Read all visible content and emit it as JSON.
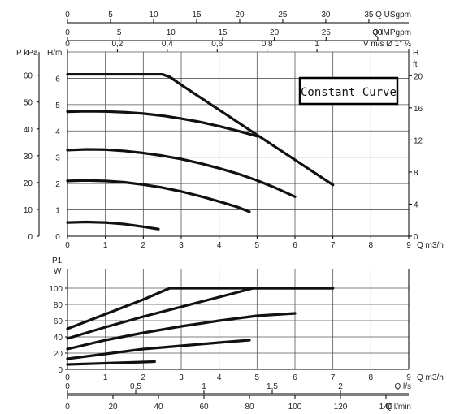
{
  "chart_data": [
    {
      "type": "line",
      "title": "Constant Curve",
      "xlabel": "Q m3/h",
      "ylabel": "H/m",
      "xlim": [
        0,
        9
      ],
      "ylim": [
        0,
        7
      ],
      "x_ticks": [
        "0",
        "1",
        "2",
        "3",
        "4",
        "5",
        "6",
        "7",
        "8",
        "9"
      ],
      "y_ticks": [
        "0",
        "1",
        "2",
        "3",
        "4",
        "5",
        "6"
      ],
      "left_axis_label": "P kPa",
      "left_axis_ticks": [
        "0",
        "10",
        "20",
        "30",
        "40",
        "50",
        "60"
      ],
      "right_axis_label_top": "H",
      "right_axis_label_bottom": "ft",
      "right_axis_ticks": [
        "0",
        "4",
        "8",
        "12",
        "16",
        "20"
      ],
      "top_axis_1_label": "Q USgpm",
      "top_axis_1_ticks": [
        "0",
        "5",
        "10",
        "15",
        "20",
        "25",
        "30",
        "35"
      ],
      "top_axis_2_label": "Q IMPgpm",
      "top_axis_2_ticks": [
        "0",
        "5",
        "10",
        "15",
        "20",
        "25",
        "30"
      ],
      "top_axis_3_label": "V m/s Ø 1\" ½",
      "top_axis_3_ticks": [
        "0",
        "0,2",
        "0,4",
        "0,6",
        "0,8",
        "1"
      ],
      "grid": true,
      "series": [
        {
          "x": [
            0,
            1,
            2,
            2.5,
            2.7,
            2.8
          ],
          "y": [
            6.15,
            6.15,
            6.15,
            6.15,
            6.05,
            5.95
          ]
        },
        {
          "x": [
            0,
            0.5,
            1,
            1.5,
            2,
            2.5,
            3,
            3.5,
            4,
            4.5,
            5
          ],
          "y": [
            4.73,
            4.75,
            4.74,
            4.71,
            4.66,
            4.58,
            4.47,
            4.34,
            4.18,
            4.0,
            3.8
          ]
        },
        {
          "x": [
            0,
            0.5,
            1,
            1.5,
            2,
            2.5,
            3,
            3.5,
            4,
            4.5,
            5,
            5.5,
            6
          ],
          "y": [
            3.27,
            3.3,
            3.29,
            3.24,
            3.16,
            3.06,
            2.93,
            2.77,
            2.58,
            2.37,
            2.12,
            1.83,
            1.5
          ]
        },
        {
          "x": [
            0,
            0.5,
            1,
            1.5,
            2,
            2.5,
            3,
            3.5,
            4,
            4.5,
            4.8
          ],
          "y": [
            2.1,
            2.12,
            2.1,
            2.05,
            1.96,
            1.85,
            1.7,
            1.52,
            1.32,
            1.1,
            0.93
          ]
        },
        {
          "x": [
            0,
            0.5,
            1,
            1.5,
            2,
            2.4
          ],
          "y": [
            0.52,
            0.54,
            0.52,
            0.46,
            0.36,
            0.27
          ]
        },
        {
          "x": [
            2.75,
            3,
            4,
            5,
            6,
            7
          ],
          "y": [
            6.0,
            5.75,
            4.8,
            3.85,
            2.9,
            1.95
          ]
        }
      ]
    },
    {
      "type": "line",
      "title": "",
      "xlabel": "Q m3/h",
      "ylabel": "P1 W",
      "ylabel_top": "P1",
      "ylabel_bottom": "W",
      "xlim": [
        0,
        9
      ],
      "ylim": [
        0,
        120
      ],
      "x_ticks": [
        "0",
        "1",
        "2",
        "3",
        "4",
        "5",
        "6",
        "7",
        "8",
        "9"
      ],
      "y_ticks": [
        "0",
        "20",
        "40",
        "60",
        "80",
        "100"
      ],
      "bottom_axis_1_label": "Q l/s",
      "bottom_axis_1_ticks": [
        "0",
        "0,5",
        "1",
        "1,5",
        "2"
      ],
      "bottom_axis_2_label": "Q l/min",
      "bottom_axis_2_ticks": [
        "0",
        "20",
        "40",
        "60",
        "80",
        "100",
        "120",
        "140"
      ],
      "grid": true,
      "series": [
        {
          "x": [
            0,
            1,
            2,
            2.7,
            7
          ],
          "y": [
            50,
            68,
            86,
            100,
            100
          ]
        },
        {
          "x": [
            0,
            1,
            2,
            3,
            4,
            4.9,
            7
          ],
          "y": [
            38,
            52,
            65,
            77,
            89,
            100,
            100
          ]
        },
        {
          "x": [
            0,
            1,
            2,
            3,
            4,
            5,
            6
          ],
          "y": [
            25,
            36,
            45,
            53,
            60,
            66,
            69
          ]
        },
        {
          "x": [
            0,
            1,
            2,
            3,
            4,
            4.8
          ],
          "y": [
            13,
            19,
            25,
            29,
            33,
            36
          ]
        },
        {
          "x": [
            0,
            1,
            2,
            2.3
          ],
          "y": [
            6,
            7.5,
            9,
            9.5
          ]
        }
      ]
    }
  ]
}
